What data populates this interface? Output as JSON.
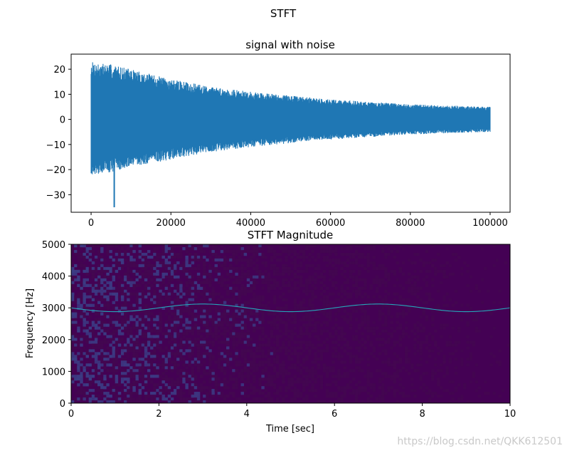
{
  "figure": {
    "suptitle": "STFT",
    "watermark": "https://blog.csdn.net/QKK612501"
  },
  "colors": {
    "signal_line": "#1f77b4",
    "spectrogram_bg": "#43094f",
    "spectrogram_bg_dark": "#440154",
    "spectrogram_noise": "#3b3f87",
    "tone_line": "#26a6b8",
    "axis": "#000000"
  },
  "chart_data": [
    {
      "type": "line",
      "title": "signal with noise",
      "xlabel": "",
      "ylabel": "",
      "xlim": [
        -5000,
        105000
      ],
      "ylim": [
        -37,
        26
      ],
      "xticks": [
        0,
        20000,
        40000,
        60000,
        80000,
        100000
      ],
      "xtick_labels": [
        "0",
        "20000",
        "40000",
        "60000",
        "80000",
        "100000"
      ],
      "yticks": [
        20,
        10,
        0,
        -10,
        -20,
        -30
      ],
      "ytick_labels": [
        "20",
        "10",
        "0",
        "−10",
        "−20",
        "−30"
      ],
      "series": [
        {
          "name": "signal",
          "envelope_x": [
            0,
            5000,
            10000,
            20000,
            30000,
            40000,
            50000,
            60000,
            70000,
            80000,
            90000,
            100000
          ],
          "envelope_upper": [
            23,
            22,
            20,
            16,
            13,
            11,
            9.5,
            8,
            7,
            6,
            5.5,
            5
          ],
          "envelope_lower": [
            -22,
            -21,
            -19,
            -16,
            -13,
            -11,
            -9.5,
            -8,
            -7,
            -6,
            -5.5,
            -5
          ],
          "outlier": {
            "x": 5800,
            "y": -35
          }
        }
      ]
    },
    {
      "type": "heatmap",
      "title": "STFT Magnitude",
      "xlabel": "Time [sec]",
      "ylabel": "Frequency [Hz]",
      "xlim": [
        0,
        10
      ],
      "ylim": [
        0,
        5000
      ],
      "xticks": [
        0,
        2,
        4,
        6,
        8,
        10
      ],
      "xtick_labels": [
        "0",
        "2",
        "4",
        "6",
        "8",
        "10"
      ],
      "yticks": [
        0,
        1000,
        2000,
        3000,
        4000,
        5000
      ],
      "ytick_labels": [
        "0",
        "1000",
        "2000",
        "3000",
        "4000",
        "5000"
      ],
      "tone": {
        "description": "carrier 3000 Hz with sinusoidal frequency modulation",
        "t": [
          0,
          1,
          2,
          3,
          4,
          5,
          6,
          7,
          8,
          9,
          10
        ],
        "freq_hz": [
          2950,
          2870,
          2920,
          3110,
          3050,
          2870,
          2920,
          3110,
          3050,
          2870,
          2970
        ]
      }
    }
  ]
}
